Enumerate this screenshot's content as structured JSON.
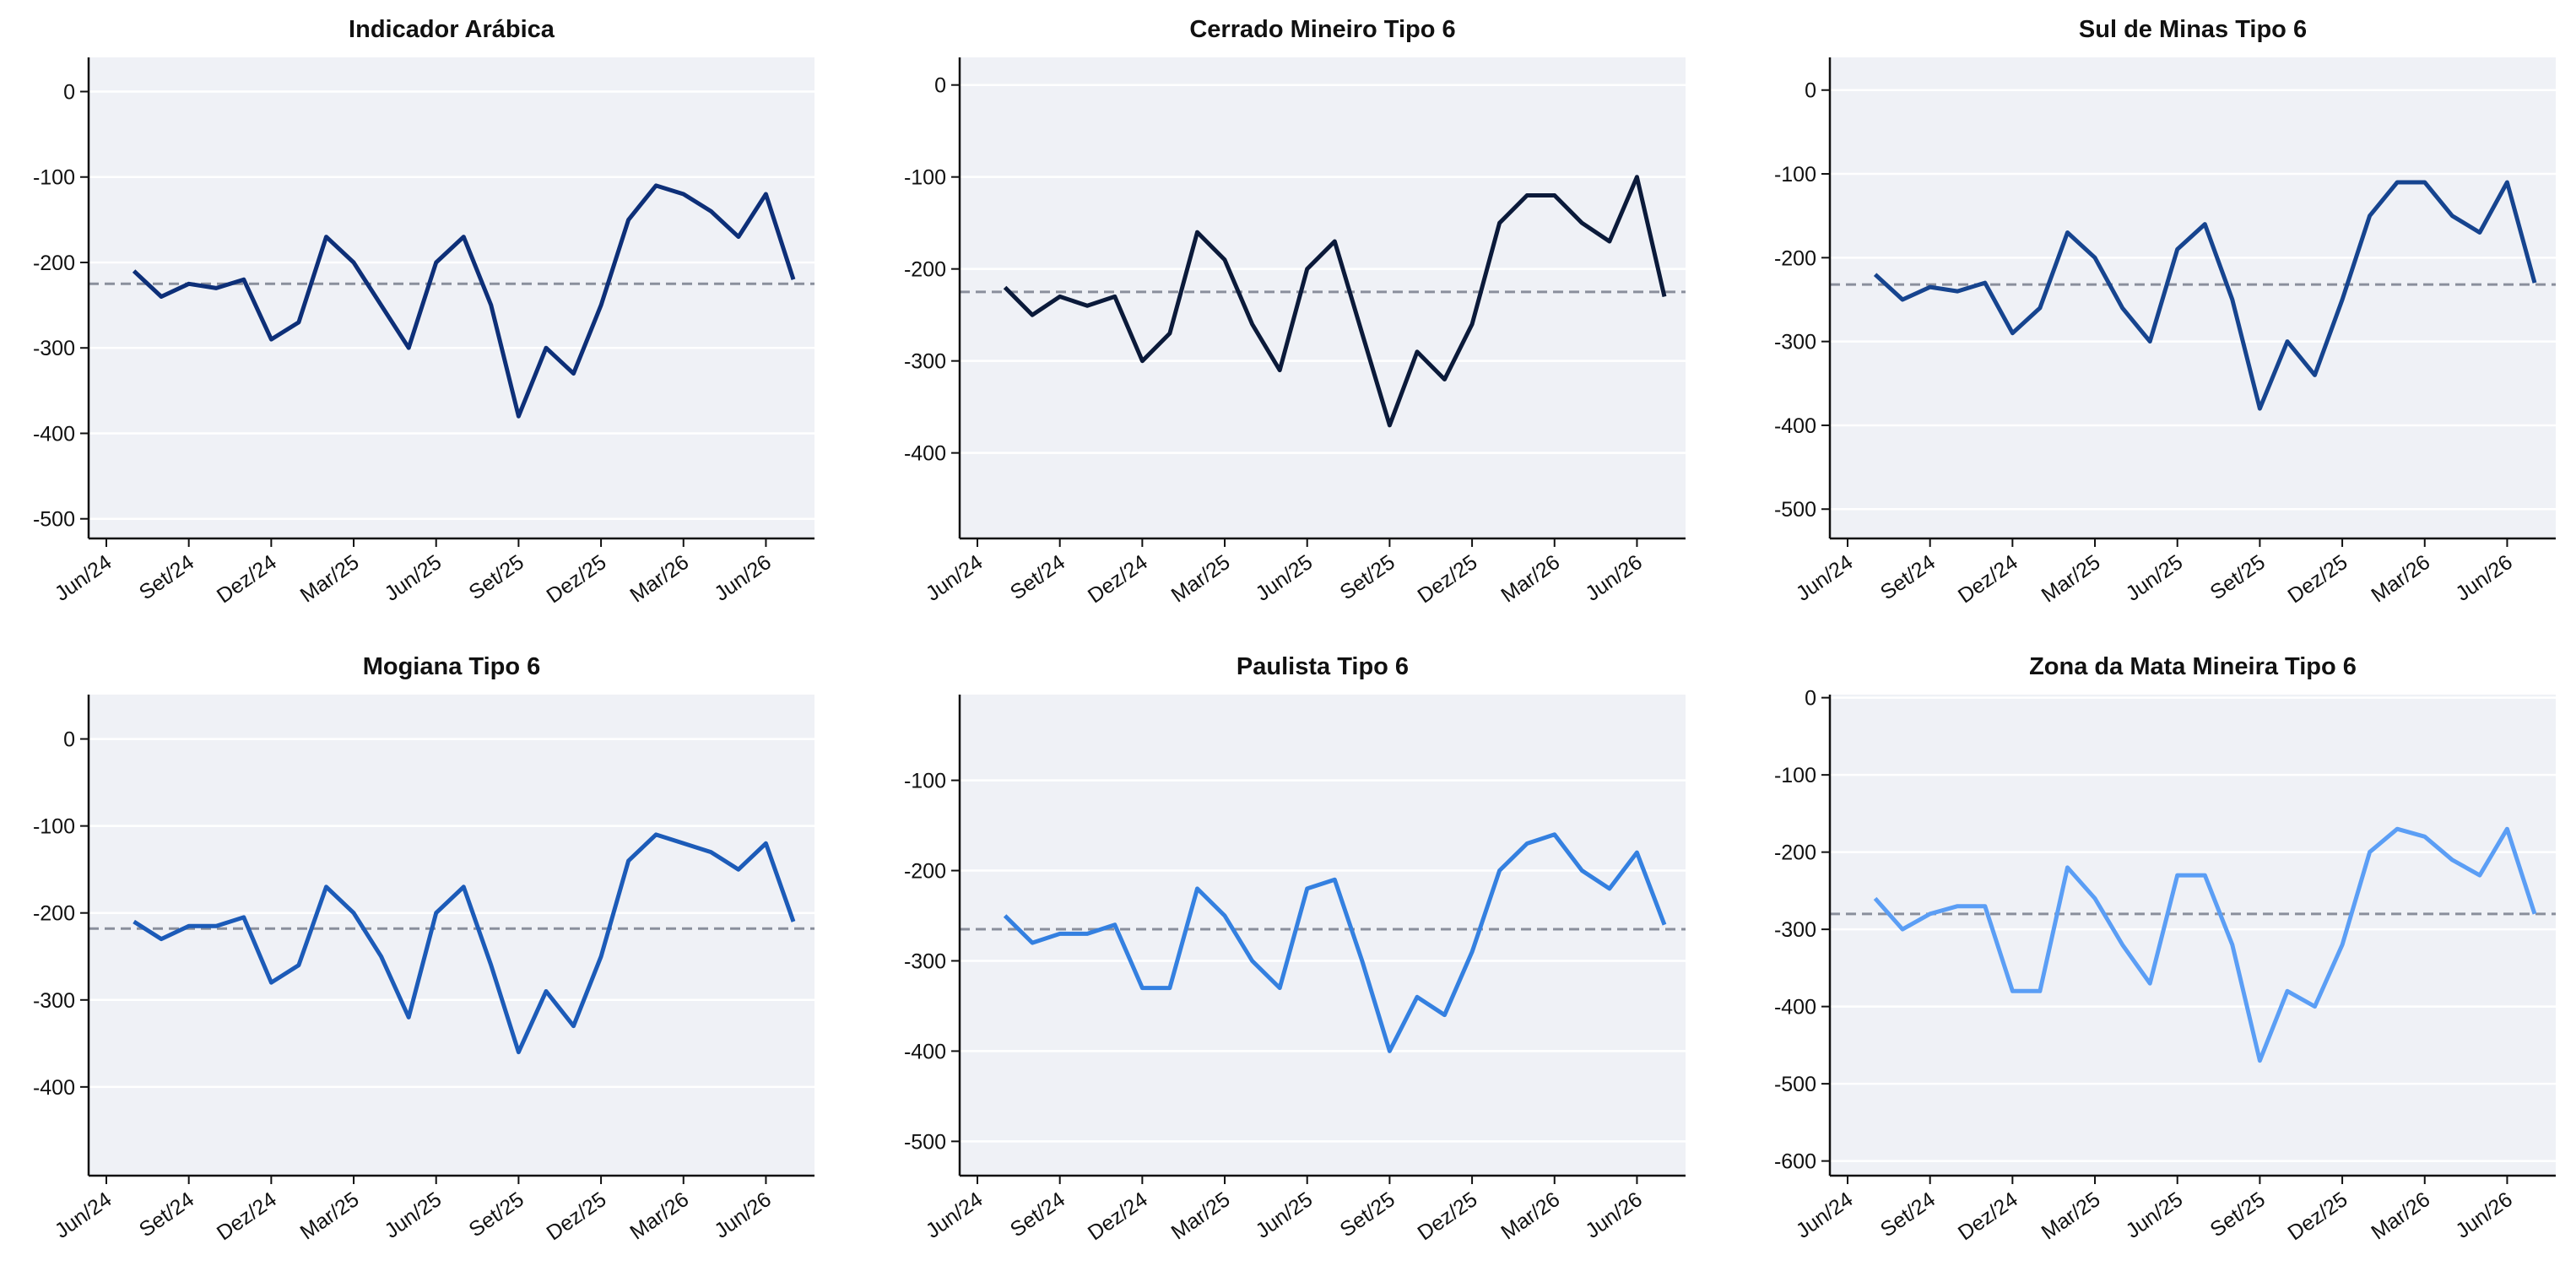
{
  "chart_data": [
    {
      "type": "line",
      "title": "Indicador Arábica",
      "x": [
        "2024-07",
        "2024-08",
        "2024-09",
        "2024-10",
        "2024-11",
        "2024-12",
        "2025-01",
        "2025-02",
        "2025-03",
        "2025-04",
        "2025-05",
        "2025-06",
        "2025-07",
        "2025-08",
        "2025-09",
        "2025-10",
        "2025-11",
        "2025-12",
        "2026-01",
        "2026-02",
        "2026-03",
        "2026-04",
        "2026-05",
        "2026-06",
        "2026-07"
      ],
      "values": [
        -210,
        -240,
        -225,
        -230,
        -220,
        -290,
        -270,
        -170,
        -200,
        -250,
        -300,
        -200,
        -170,
        -250,
        -380,
        -300,
        -330,
        -250,
        -150,
        -110,
        -120,
        -140,
        -170,
        -120,
        -220
      ],
      "color": "#0d2f78",
      "xlim": [
        "2024-06",
        "2026-07"
      ],
      "xticks": [
        {
          "value": "2024-06",
          "label": "Jun/24"
        },
        {
          "value": "2024-09",
          "label": "Set/24"
        },
        {
          "value": "2024-12",
          "label": "Dez/24"
        },
        {
          "value": "2025-03",
          "label": "Mar/25"
        },
        {
          "value": "2025-06",
          "label": "Jun/25"
        },
        {
          "value": "2025-09",
          "label": "Set/25"
        },
        {
          "value": "2025-12",
          "label": "Dez/25"
        },
        {
          "value": "2026-03",
          "label": "Mar/26"
        },
        {
          "value": "2026-06",
          "label": "Jun/26"
        }
      ],
      "ylim": [
        -523,
        40
      ],
      "yticks": [
        0,
        -100,
        -200,
        -300,
        -400,
        -500
      ],
      "grid": true,
      "reference_lines": [
        {
          "value": 0,
          "style": "dotted",
          "color": "#ffffff"
        },
        {
          "value": -225,
          "style": "dashed",
          "color": "#8a8f9c"
        }
      ]
    },
    {
      "type": "line",
      "title": "Cerrado Mineiro Tipo 6",
      "x": [
        "2024-07",
        "2024-08",
        "2024-09",
        "2024-10",
        "2024-11",
        "2024-12",
        "2025-01",
        "2025-02",
        "2025-03",
        "2025-04",
        "2025-05",
        "2025-06",
        "2025-07",
        "2025-08",
        "2025-09",
        "2025-10",
        "2025-11",
        "2025-12",
        "2026-01",
        "2026-02",
        "2026-03",
        "2026-04",
        "2026-05",
        "2026-06",
        "2026-07"
      ],
      "values": [
        -220,
        -250,
        -230,
        -240,
        -230,
        -300,
        -270,
        -160,
        -190,
        -260,
        -310,
        -200,
        -170,
        -270,
        -370,
        -290,
        -320,
        -260,
        -150,
        -120,
        -120,
        -150,
        -170,
        -100,
        -230
      ],
      "color": "#0b1a3a",
      "xlim": [
        "2024-06",
        "2026-07"
      ],
      "xticks": [
        {
          "value": "2024-06",
          "label": "Jun/24"
        },
        {
          "value": "2024-09",
          "label": "Set/24"
        },
        {
          "value": "2024-12",
          "label": "Dez/24"
        },
        {
          "value": "2025-03",
          "label": "Mar/25"
        },
        {
          "value": "2025-06",
          "label": "Jun/25"
        },
        {
          "value": "2025-09",
          "label": "Set/25"
        },
        {
          "value": "2025-12",
          "label": "Dez/25"
        },
        {
          "value": "2026-03",
          "label": "Mar/26"
        },
        {
          "value": "2026-06",
          "label": "Jun/26"
        }
      ],
      "ylim": [
        -493,
        30
      ],
      "yticks": [
        0,
        -100,
        -200,
        -300,
        -400
      ],
      "grid": true,
      "reference_lines": [
        {
          "value": 0,
          "style": "dotted",
          "color": "#ffffff"
        },
        {
          "value": -225,
          "style": "dashed",
          "color": "#8a8f9c"
        }
      ]
    },
    {
      "type": "line",
      "title": "Sul de Minas Tipo 6",
      "x": [
        "2024-07",
        "2024-08",
        "2024-09",
        "2024-10",
        "2024-11",
        "2024-12",
        "2025-01",
        "2025-02",
        "2025-03",
        "2025-04",
        "2025-05",
        "2025-06",
        "2025-07",
        "2025-08",
        "2025-09",
        "2025-10",
        "2025-11",
        "2025-12",
        "2026-01",
        "2026-02",
        "2026-03",
        "2026-04",
        "2026-05",
        "2026-06",
        "2026-07"
      ],
      "values": [
        -220,
        -250,
        -235,
        -240,
        -230,
        -290,
        -260,
        -170,
        -200,
        -260,
        -300,
        -190,
        -160,
        -250,
        -380,
        -300,
        -340,
        -250,
        -150,
        -110,
        -110,
        -150,
        -170,
        -110,
        -230
      ],
      "color": "#16448f",
      "xlim": [
        "2024-06",
        "2026-07"
      ],
      "xticks": [
        {
          "value": "2024-06",
          "label": "Jun/24"
        },
        {
          "value": "2024-09",
          "label": "Set/24"
        },
        {
          "value": "2024-12",
          "label": "Dez/24"
        },
        {
          "value": "2025-03",
          "label": "Mar/25"
        },
        {
          "value": "2025-06",
          "label": "Jun/25"
        },
        {
          "value": "2025-09",
          "label": "Set/25"
        },
        {
          "value": "2025-12",
          "label": "Dez/25"
        },
        {
          "value": "2026-03",
          "label": "Mar/26"
        },
        {
          "value": "2026-06",
          "label": "Jun/26"
        }
      ],
      "ylim": [
        -535,
        39
      ],
      "yticks": [
        0,
        -100,
        -200,
        -300,
        -400,
        -500
      ],
      "grid": true,
      "reference_lines": [
        {
          "value": 0,
          "style": "dotted",
          "color": "#ffffff"
        },
        {
          "value": -232,
          "style": "dashed",
          "color": "#8a8f9c"
        }
      ]
    },
    {
      "type": "line",
      "title": "Mogiana Tipo 6",
      "x": [
        "2024-07",
        "2024-08",
        "2024-09",
        "2024-10",
        "2024-11",
        "2024-12",
        "2025-01",
        "2025-02",
        "2025-03",
        "2025-04",
        "2025-05",
        "2025-06",
        "2025-07",
        "2025-08",
        "2025-09",
        "2025-10",
        "2025-11",
        "2025-12",
        "2026-01",
        "2026-02",
        "2026-03",
        "2026-04",
        "2026-05",
        "2026-06",
        "2026-07"
      ],
      "values": [
        -210,
        -230,
        -215,
        -215,
        -205,
        -280,
        -260,
        -170,
        -200,
        -250,
        -320,
        -200,
        -170,
        -260,
        -360,
        -290,
        -330,
        -250,
        -140,
        -110,
        -120,
        -130,
        -150,
        -120,
        -210
      ],
      "color": "#1c5bb8",
      "xlim": [
        "2024-06",
        "2026-07"
      ],
      "xticks": [
        {
          "value": "2024-06",
          "label": "Jun/24"
        },
        {
          "value": "2024-09",
          "label": "Set/24"
        },
        {
          "value": "2024-12",
          "label": "Dez/24"
        },
        {
          "value": "2025-03",
          "label": "Mar/25"
        },
        {
          "value": "2025-06",
          "label": "Jun/25"
        },
        {
          "value": "2025-09",
          "label": "Set/25"
        },
        {
          "value": "2025-12",
          "label": "Dez/25"
        },
        {
          "value": "2026-03",
          "label": "Mar/26"
        },
        {
          "value": "2026-06",
          "label": "Jun/26"
        }
      ],
      "ylim": [
        -502,
        51
      ],
      "yticks": [
        0,
        -100,
        -200,
        -300,
        -400
      ],
      "grid": true,
      "reference_lines": [
        {
          "value": 0,
          "style": "dotted",
          "color": "#ffffff"
        },
        {
          "value": -218,
          "style": "dashed",
          "color": "#8a8f9c"
        }
      ]
    },
    {
      "type": "line",
      "title": "Paulista Tipo 6",
      "x": [
        "2024-07",
        "2024-08",
        "2024-09",
        "2024-10",
        "2024-11",
        "2024-12",
        "2025-01",
        "2025-02",
        "2025-03",
        "2025-04",
        "2025-05",
        "2025-06",
        "2025-07",
        "2025-08",
        "2025-09",
        "2025-10",
        "2025-11",
        "2025-12",
        "2026-01",
        "2026-02",
        "2026-03",
        "2026-04",
        "2026-05",
        "2026-06",
        "2026-07"
      ],
      "values": [
        -250,
        -280,
        -270,
        -270,
        -260,
        -330,
        -330,
        -220,
        -250,
        -300,
        -330,
        -220,
        -210,
        -300,
        -400,
        -340,
        -360,
        -290,
        -200,
        -170,
        -160,
        -200,
        -220,
        -180,
        -260
      ],
      "color": "#3480e0",
      "xlim": [
        "2024-06",
        "2026-07"
      ],
      "xticks": [
        {
          "value": "2024-06",
          "label": "Jun/24"
        },
        {
          "value": "2024-09",
          "label": "Set/24"
        },
        {
          "value": "2024-12",
          "label": "Dez/24"
        },
        {
          "value": "2025-03",
          "label": "Mar/25"
        },
        {
          "value": "2025-06",
          "label": "Jun/25"
        },
        {
          "value": "2025-09",
          "label": "Set/25"
        },
        {
          "value": "2025-12",
          "label": "Dez/25"
        },
        {
          "value": "2026-03",
          "label": "Mar/26"
        },
        {
          "value": "2026-06",
          "label": "Jun/26"
        }
      ],
      "ylim": [
        -538,
        -5
      ],
      "yticks": [
        -100,
        -200,
        -300,
        -400,
        -500
      ],
      "grid": true,
      "reference_lines": [
        {
          "value": -265,
          "style": "dashed",
          "color": "#8a8f9c"
        }
      ]
    },
    {
      "type": "line",
      "title": "Zona da Mata Mineira Tipo 6",
      "x": [
        "2024-07",
        "2024-08",
        "2024-09",
        "2024-10",
        "2024-11",
        "2024-12",
        "2025-01",
        "2025-02",
        "2025-03",
        "2025-04",
        "2025-05",
        "2025-06",
        "2025-07",
        "2025-08",
        "2025-09",
        "2025-10",
        "2025-11",
        "2025-12",
        "2026-01",
        "2026-02",
        "2026-03",
        "2026-04",
        "2026-05",
        "2026-06",
        "2026-07"
      ],
      "values": [
        -260,
        -300,
        -280,
        -270,
        -270,
        -380,
        -380,
        -220,
        -260,
        -320,
        -370,
        -230,
        -230,
        -320,
        -470,
        -380,
        -400,
        -320,
        -200,
        -170,
        -180,
        -210,
        -230,
        -170,
        -280
      ],
      "color": "#5b9ef5",
      "xlim": [
        "2024-06",
        "2026-07"
      ],
      "xticks": [
        {
          "value": "2024-06",
          "label": "Jun/24"
        },
        {
          "value": "2024-09",
          "label": "Set/24"
        },
        {
          "value": "2024-12",
          "label": "Dez/24"
        },
        {
          "value": "2025-03",
          "label": "Mar/25"
        },
        {
          "value": "2025-06",
          "label": "Jun/25"
        },
        {
          "value": "2025-09",
          "label": "Set/25"
        },
        {
          "value": "2025-12",
          "label": "Dez/25"
        },
        {
          "value": "2026-03",
          "label": "Mar/26"
        },
        {
          "value": "2026-06",
          "label": "Jun/26"
        }
      ],
      "ylim": [
        -619,
        4
      ],
      "yticks": [
        0,
        -100,
        -200,
        -300,
        -400,
        -500,
        -600
      ],
      "grid": true,
      "reference_lines": [
        {
          "value": 0,
          "style": "dotted",
          "color": "#ffffff"
        },
        {
          "value": -280,
          "style": "dashed",
          "color": "#8a8f9c"
        }
      ]
    }
  ]
}
